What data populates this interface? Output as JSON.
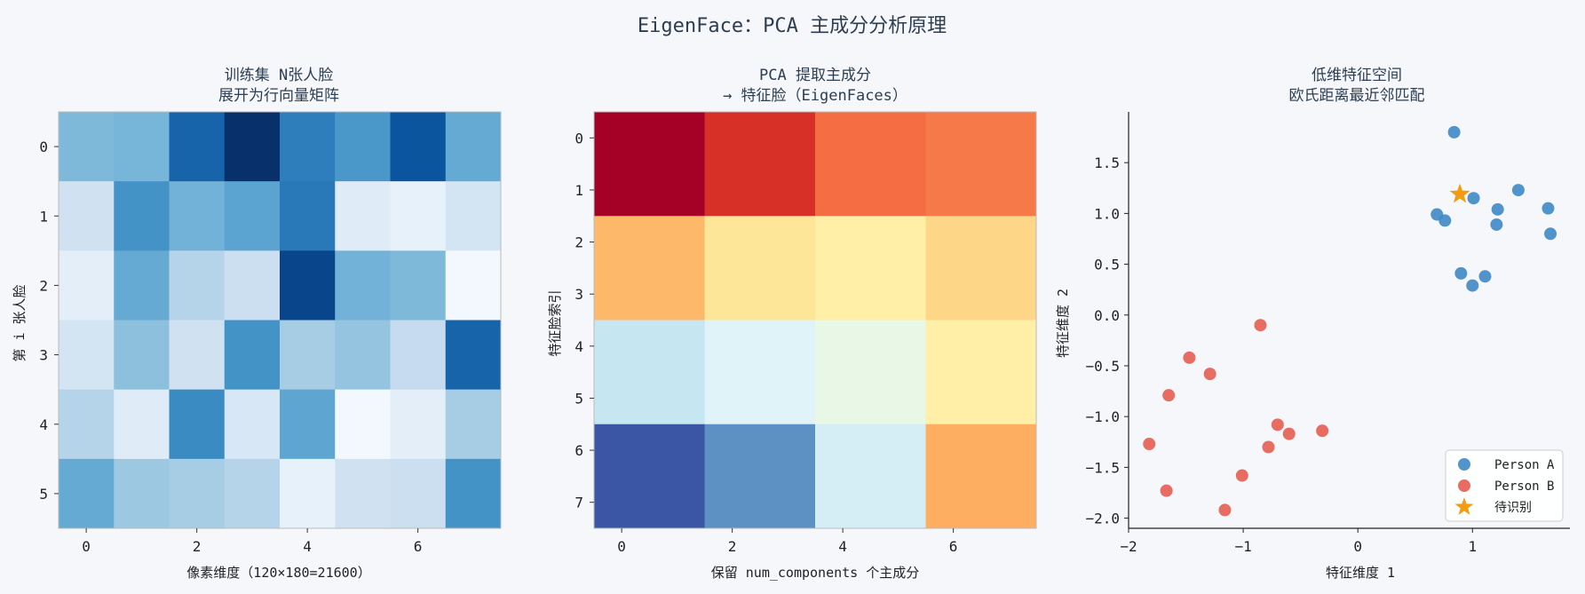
{
  "suptitle": "EigenFace：PCA 主成分分析原理",
  "chart_data": [
    {
      "type": "heatmap",
      "title_lines": [
        "训练集 N张人脸",
        "展开为行向量矩阵"
      ],
      "xlabel": "像素维度（120×180=21600）",
      "ylabel": "第 i 张人脸",
      "colormap": "Blues",
      "x_ticks": [
        "0",
        "2",
        "4",
        "6"
      ],
      "y_ticks": [
        "0",
        "1",
        "2",
        "3",
        "4",
        "5"
      ],
      "values": [
        [
          0.45,
          0.47,
          0.8,
          1.0,
          0.7,
          0.6,
          0.86,
          0.52
        ],
        [
          0.2,
          0.62,
          0.48,
          0.55,
          0.72,
          0.12,
          0.08,
          0.18
        ],
        [
          0.1,
          0.52,
          0.3,
          0.22,
          0.92,
          0.48,
          0.45,
          0.02
        ],
        [
          0.18,
          0.42,
          0.2,
          0.62,
          0.35,
          0.4,
          0.25,
          0.8
        ],
        [
          0.3,
          0.12,
          0.65,
          0.16,
          0.54,
          0.02,
          0.1,
          0.35
        ],
        [
          0.52,
          0.38,
          0.35,
          0.3,
          0.08,
          0.2,
          0.22,
          0.62
        ]
      ]
    },
    {
      "type": "heatmap",
      "title_lines": [
        "PCA 提取主成分",
        "→ 特征脸（EigenFaces）"
      ],
      "xlabel": "保留 num_components 个主成分",
      "ylabel": "特征脸索引",
      "colormap": "RdYlBu_r",
      "x_ticks": [
        "0",
        "2",
        "4",
        "6"
      ],
      "y_ticks": [
        "0",
        "1",
        "2",
        "3",
        "4",
        "5",
        "6",
        "7"
      ],
      "values": [
        [
          1.0,
          0.9,
          0.8,
          0.78
        ],
        [
          0.68,
          0.58,
          0.55,
          0.62
        ],
        [
          0.35,
          0.4,
          0.43,
          0.55
        ],
        [
          0.05,
          0.15,
          0.38,
          0.7
        ]
      ]
    },
    {
      "type": "scatter",
      "title_lines": [
        "低维特征空间",
        "欧氏距离最近邻匹配"
      ],
      "xlabel": "特征维度 1",
      "ylabel": "特征维度 2",
      "xlim": [
        -2.0,
        1.85
      ],
      "ylim": [
        -2.1,
        2.0
      ],
      "x_ticks": [
        -2,
        -1,
        0,
        1
      ],
      "y_ticks": [
        1.5,
        1.0,
        0.5,
        0.0,
        -0.5,
        -1.0,
        -1.5,
        -2.0
      ],
      "tick_label_map": {
        "-2": "−2",
        "-1": "−1",
        "0": "0",
        "1": "1.0",
        "1.5": "1.5",
        "0.5": "0.5",
        "0.0": "0.0",
        "-0.5": "−0.5",
        "-1.0": "−1.0",
        "-1.5": "−1.5",
        "-2.0": "−2.0"
      },
      "y_tick_labels": [
        "1.5",
        "1.0",
        "0.5",
        "0.0",
        "−0.5",
        "−1.0",
        "−1.5",
        "−2.0"
      ],
      "x_tick_labels": [
        "−2",
        "−1",
        "0",
        "1"
      ],
      "series": [
        {
          "name": "Person A",
          "color": "#3f88c5",
          "marker": "circle",
          "points": [
            [
              0.84,
              1.8
            ],
            [
              0.69,
              0.99
            ],
            [
              0.76,
              0.93
            ],
            [
              1.01,
              1.15
            ],
            [
              1.4,
              1.23
            ],
            [
              1.22,
              1.04
            ],
            [
              1.21,
              0.89
            ],
            [
              1.66,
              1.05
            ],
            [
              1.68,
              0.8
            ],
            [
              0.9,
              0.41
            ],
            [
              1.0,
              0.29
            ],
            [
              1.11,
              0.38
            ]
          ]
        },
        {
          "name": "Person B",
          "color": "#e65c50",
          "marker": "circle",
          "points": [
            [
              -0.85,
              -0.1
            ],
            [
              -1.47,
              -0.42
            ],
            [
              -1.29,
              -0.58
            ],
            [
              -1.65,
              -0.79
            ],
            [
              -0.7,
              -1.08
            ],
            [
              -0.78,
              -1.3
            ],
            [
              -0.6,
              -1.17
            ],
            [
              -0.31,
              -1.14
            ],
            [
              -1.82,
              -1.27
            ],
            [
              -1.01,
              -1.58
            ],
            [
              -1.67,
              -1.73
            ],
            [
              -1.16,
              -1.92
            ]
          ]
        },
        {
          "name": "待识别",
          "color": "#f39c12",
          "marker": "star",
          "points": [
            [
              0.89,
              1.19
            ]
          ]
        }
      ],
      "legend_position": "lower-right"
    }
  ]
}
